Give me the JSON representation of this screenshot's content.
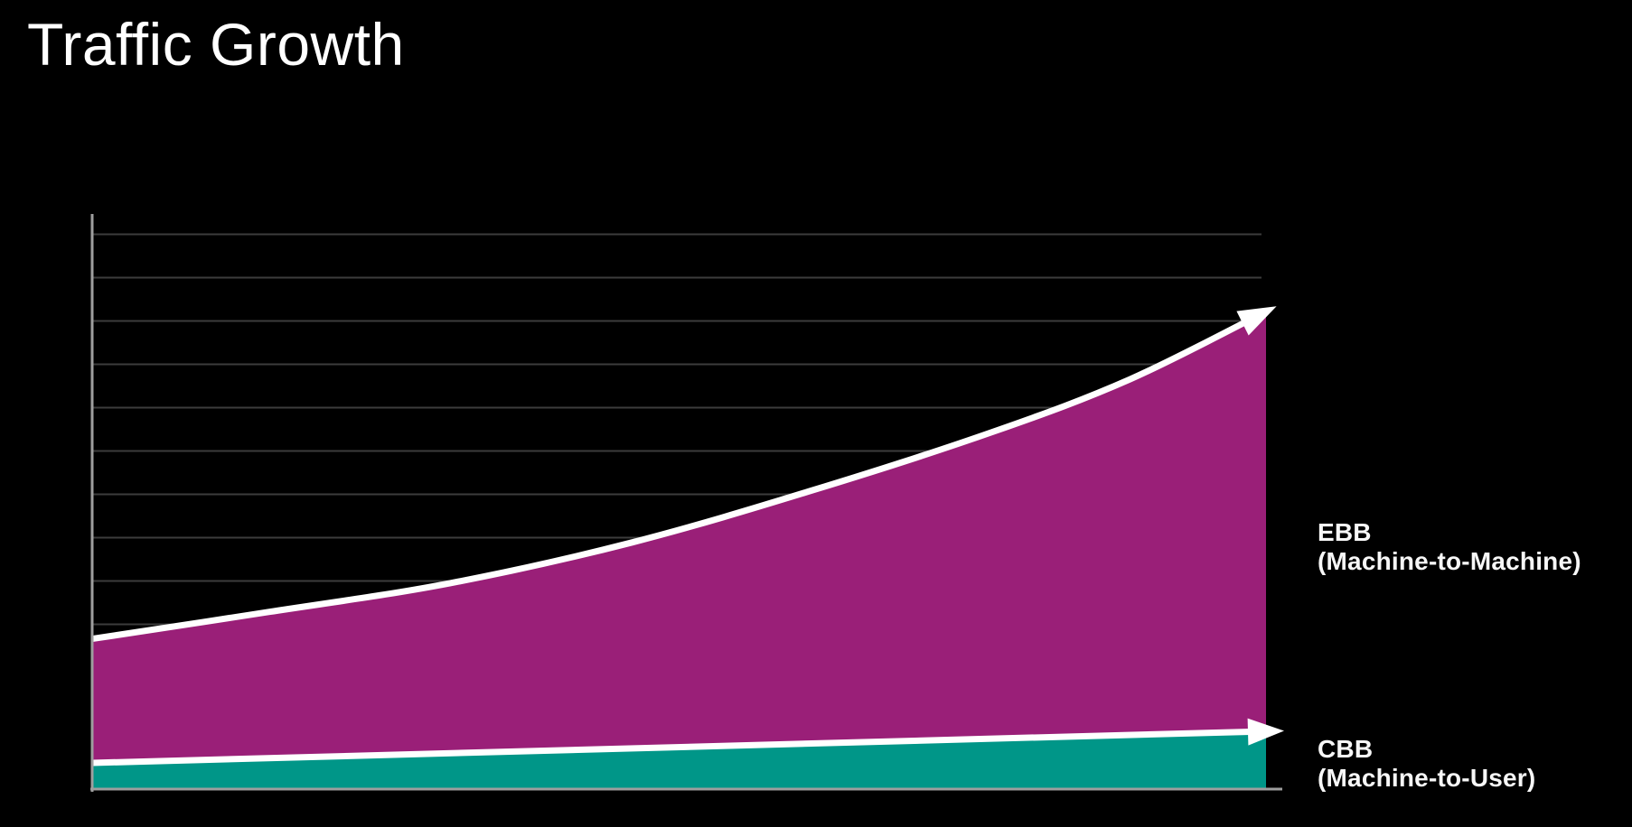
{
  "title": "Traffic Growth",
  "colors": {
    "background": "#000000",
    "ebb_fill": "#9a1f78",
    "cbb_fill": "#009688",
    "trend_line": "#ffffff",
    "axis": "#9e9e9e",
    "gridline": "#3c3c3c",
    "text": "#ffffff"
  },
  "chart": {
    "labels": {
      "ebb": {
        "name": "EBB",
        "description": "(Machine-to-Machine)"
      },
      "cbb": {
        "name": "CBB",
        "description": "(Machine-to-User)"
      }
    }
  },
  "chart_data": {
    "type": "area",
    "title": "Traffic Growth",
    "xlabel": "",
    "ylabel": "",
    "x_range_pct": [
      0,
      100
    ],
    "y_range_units": [
      0,
      100
    ],
    "axes": {
      "y_axis_line": true,
      "x_axis_line": true,
      "tick_labels": false
    },
    "grid": {
      "visible": true,
      "orientation": "horizontal",
      "count": 11
    },
    "legend": {
      "position": "right",
      "entries": [
        "EBB (Machine-to-Machine)",
        "CBB (Machine-to-User)"
      ]
    },
    "series": [
      {
        "name": "EBB",
        "description": "(Machine-to-Machine)",
        "fill_color": "#9a1f78",
        "line_color": "#ffffff",
        "arrow_end": true,
        "trend": "accelerating exponential growth",
        "x_pct": [
          0,
          15.1,
          30.5,
          46.0,
          61.4,
          76.8,
          88.4,
          100
        ],
        "values": [
          26.0,
          30.7,
          35.7,
          42.8,
          51.9,
          62.1,
          71.2,
          83.0
        ]
      },
      {
        "name": "CBB",
        "description": "(Machine-to-User)",
        "fill_color": "#009688",
        "line_color": "#ffffff",
        "arrow_end": true,
        "trend": "slow linear growth",
        "x_pct": [
          0,
          100
        ],
        "values": [
          4.4,
          9.9
        ]
      }
    ]
  }
}
